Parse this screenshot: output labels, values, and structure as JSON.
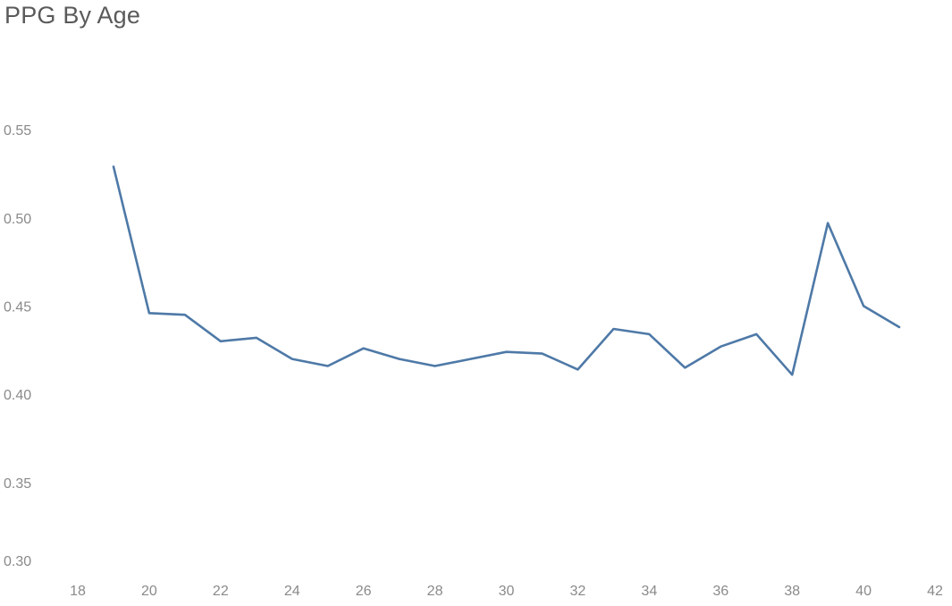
{
  "chart_data": {
    "type": "line",
    "title": "PPG By Age",
    "xlabel": "",
    "ylabel": "",
    "xlim": [
      17,
      43
    ],
    "ylim": [
      0.3,
      0.578
    ],
    "x_ticks": [
      18,
      20,
      22,
      24,
      26,
      28,
      30,
      32,
      34,
      36,
      38,
      40,
      42
    ],
    "y_ticks": [
      0.3,
      0.35,
      0.4,
      0.45,
      0.5,
      0.55
    ],
    "y_tick_labels": [
      "0.30",
      "0.35",
      "0.40",
      "0.45",
      "0.50",
      "0.55"
    ],
    "grid": false,
    "color": "#4e79a7",
    "series": [
      {
        "x": [
          19,
          20,
          21,
          22,
          23,
          24,
          25,
          26,
          27,
          28,
          29,
          30,
          31,
          32,
          33,
          34,
          35,
          36,
          37,
          38,
          39,
          40,
          41
        ],
        "values": [
          0.53,
          0.447,
          0.446,
          0.431,
          0.433,
          0.421,
          0.417,
          0.427,
          0.421,
          0.417,
          0.421,
          0.425,
          0.424,
          0.415,
          0.438,
          0.435,
          0.416,
          0.428,
          0.435,
          0.412,
          0.498,
          0.451,
          0.439
        ]
      }
    ]
  }
}
